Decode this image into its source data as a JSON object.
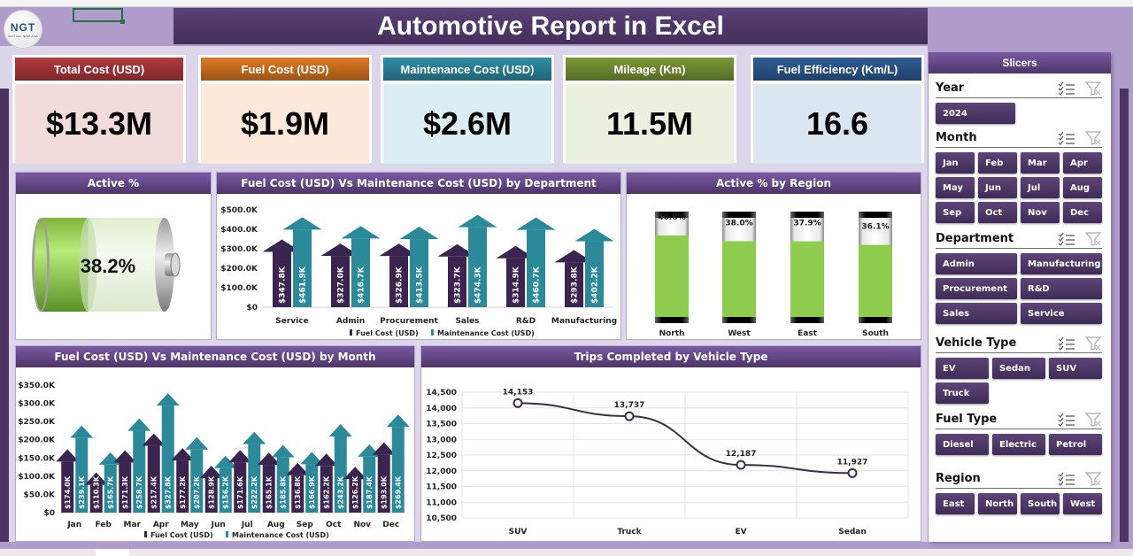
{
  "title": "Automotive Report in Excel",
  "logo": {
    "text": "NGT",
    "subtext": "NEXT GEN TEMPLATES"
  },
  "kpis": [
    {
      "label": "Total Cost (USD)",
      "value": "$13.3M",
      "header_color": "#b33a3e",
      "body_color": "#f2dcdb"
    },
    {
      "label": "Fuel Cost (USD)",
      "value": "$1.9M",
      "header_color": "#e07a22",
      "body_color": "#fde9d9"
    },
    {
      "label": "Maintenance Cost (USD)",
      "value": "$2.6M",
      "header_color": "#2e8fa8",
      "body_color": "#daeef3"
    },
    {
      "label": "Mileage (Km)",
      "value": "11.5M",
      "header_color": "#7c9a35",
      "body_color": "#ebf1de"
    },
    {
      "label": "Fuel Efficiency (Km/L)",
      "value": "16.6",
      "header_color": "#2e5d98",
      "body_color": "#dce6f1"
    }
  ],
  "active_pct": {
    "title": "Active %",
    "value": 38.2,
    "label": "38.2%"
  },
  "slicers": {
    "title": "Slicers",
    "groups": [
      {
        "name": "Year",
        "items": [
          "2024"
        ]
      },
      {
        "name": "Month",
        "items": [
          "Jan",
          "Feb",
          "Mar",
          "Apr",
          "May",
          "Jun",
          "Jul",
          "Aug",
          "Sep",
          "Oct",
          "Nov",
          "Dec"
        ]
      },
      {
        "name": "Department",
        "items": [
          "Admin",
          "Manufacturing",
          "Procurement",
          "R&D",
          "Sales",
          "Service"
        ]
      },
      {
        "name": "Vehicle Type",
        "items": [
          "EV",
          "Sedan",
          "SUV",
          "Truck"
        ]
      },
      {
        "name": "Fuel Type",
        "items": [
          "Diesel",
          "Electric",
          "Petrol"
        ]
      },
      {
        "name": "Region",
        "items": [
          "East",
          "North",
          "South",
          "West"
        ]
      }
    ]
  },
  "chart_data": [
    {
      "type": "bar",
      "title": "Fuel Cost (USD) Vs Maintenance Cost (USD) by Department",
      "categories": [
        "Service",
        "Admin",
        "Procurement",
        "Sales",
        "R&D",
        "Manufacturing"
      ],
      "series": [
        {
          "name": "Fuel Cost (USD)",
          "color": "#3b2550",
          "values": [
            347.8,
            327.0,
            326.9,
            323.7,
            314.9,
            293.8
          ],
          "labels": [
            "$347.8K",
            "$327.0K",
            "$326.9K",
            "$323.7K",
            "$314.9K",
            "$293.8K"
          ]
        },
        {
          "name": "Maintenance Cost (USD)",
          "color": "#2a8a9a",
          "values": [
            461.9,
            416.7,
            413.5,
            474.3,
            460.7,
            402.2
          ],
          "labels": [
            "$461.9K",
            "$416.7K",
            "$413.5K",
            "$474.3K",
            "$460.7K",
            "$402.2K"
          ]
        }
      ],
      "yticks": [
        "$0",
        "$100.0K",
        "$200.0K",
        "$300.0K",
        "$400.0K",
        "$500.0K"
      ],
      "ylim": [
        0,
        500
      ],
      "units": "thousand USD",
      "legend": "bottom"
    },
    {
      "type": "bar",
      "title": "Active % by Region",
      "categories": [
        "North",
        "West",
        "East",
        "South"
      ],
      "values": [
        40.8,
        38.0,
        37.9,
        36.1
      ],
      "labels": [
        "40.8%",
        "38.0%",
        "37.9%",
        "36.1%"
      ],
      "ylim": [
        0,
        100
      ]
    },
    {
      "type": "bar",
      "title": "Fuel Cost (USD) Vs Maintenance Cost (USD) by Month",
      "categories": [
        "Jan",
        "Feb",
        "Mar",
        "Apr",
        "May",
        "Jun",
        "Jul",
        "Aug",
        "Sep",
        "Oct",
        "Nov",
        "Dec"
      ],
      "series": [
        {
          "name": "Fuel Cost (USD)",
          "color": "#3b2550",
          "values": [
            174.0,
            110.3,
            171.3,
            217.4,
            177.2,
            128.9,
            171.6,
            165.1,
            136.8,
            162.2,
            126.2,
            193.0
          ],
          "labels": [
            "$174.0K",
            "$110.3K",
            "$171.3K",
            "$217.4K",
            "$177.2K",
            "$128.9K",
            "$171.6K",
            "$165.1K",
            "$136.8K",
            "$162.2K",
            "$126.2K",
            "$193.0K"
          ]
        },
        {
          "name": "Maintenance Cost (USD)",
          "color": "#2a8a9a",
          "values": [
            239.1,
            165.7,
            258.7,
            327.8,
            207.2,
            156.2,
            222.2,
            185.8,
            166.9,
            243.2,
            187.4,
            269.4
          ],
          "labels": [
            "$239.1K",
            "$165.7K",
            "$258.7K",
            "$327.8K",
            "$207.2K",
            "$156.2K",
            "$222.2K",
            "$185.8K",
            "$166.9K",
            "$243.2K",
            "$187.4K",
            "$269.4K"
          ]
        }
      ],
      "yticks": [
        "$0",
        "$50.0K",
        "$100.0K",
        "$150.0K",
        "$200.0K",
        "$250.0K",
        "$300.0K",
        "$350.0K"
      ],
      "ylim": [
        0,
        350
      ],
      "units": "thousand USD",
      "legend": "bottom"
    },
    {
      "type": "line",
      "title": "Trips Completed by Vehicle Type",
      "categories": [
        "SUV",
        "Truck",
        "EV",
        "Sedan"
      ],
      "values": [
        14153,
        13737,
        12187,
        11927
      ],
      "labels": [
        "14,153",
        "13,737",
        "12,187",
        "11,927"
      ],
      "yticks": [
        "10,500",
        "11,000",
        "11,500",
        "12,000",
        "12,500",
        "13,000",
        "13,500",
        "14,000",
        "14,500"
      ],
      "ylim": [
        10500,
        14500
      ],
      "grid": true
    }
  ]
}
